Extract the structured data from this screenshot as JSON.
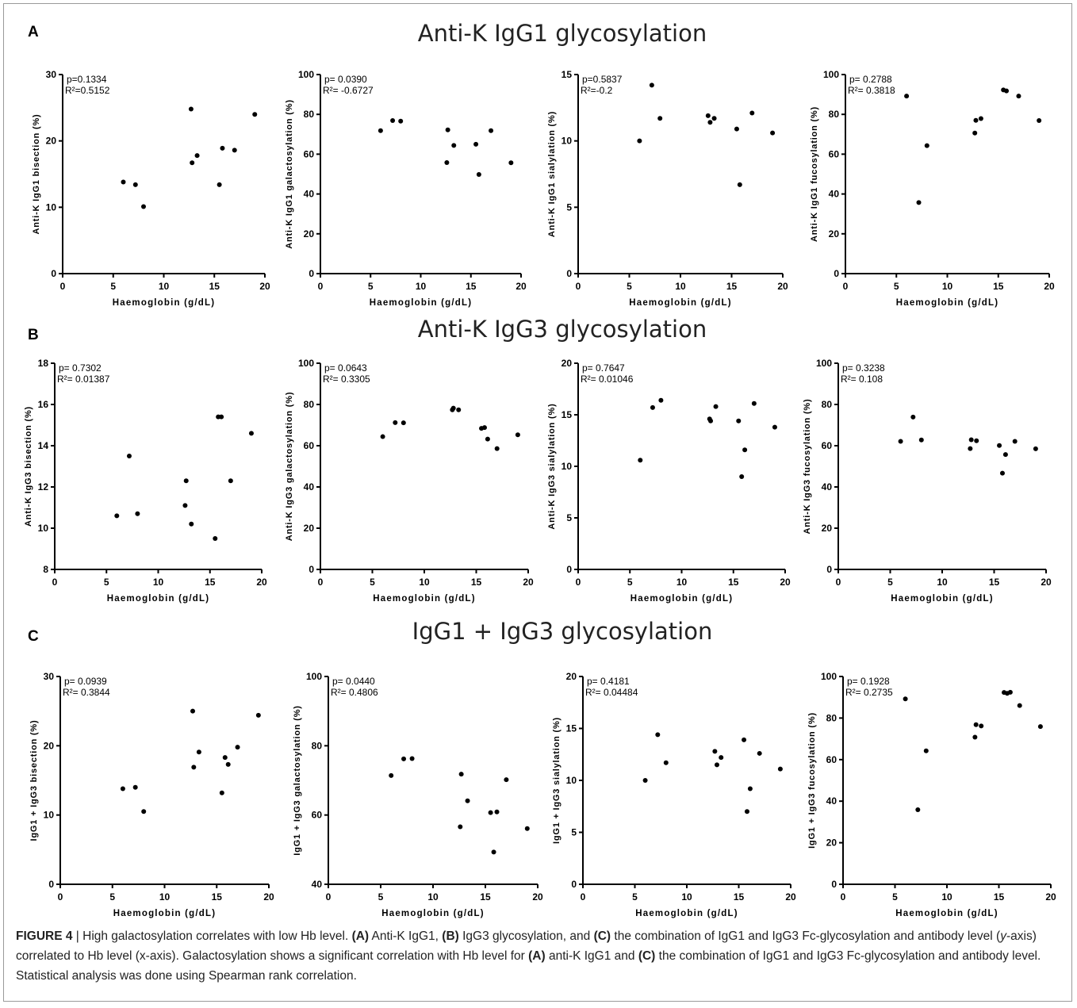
{
  "rows": [
    {
      "letter": "A",
      "title": "Anti-K IgG1 glycosylation"
    },
    {
      "letter": "B",
      "title": "Anti-K IgG3 glycosylation"
    },
    {
      "letter": "C",
      "title": "IgG1 + IgG3 glycosylation"
    }
  ],
  "caption": {
    "figure_label": "FIGURE 4",
    "sep": " | ",
    "s1": "High galactosylation correlates with low Hb level. ",
    "a1": "(A)",
    "s2": " Anti-K IgG1, ",
    "b1": "(B)",
    "s3": " IgG3 glycosylation, and ",
    "c1": "(C)",
    "s4": " the combination of IgG1 and IgG3 Fc-glycosylation and antibody level (",
    "yaxis": "y",
    "s5": "-axis) correlated to Hb level (x-axis). Galactosylation shows a significant correlation with Hb level for ",
    "a2": "(A)",
    "s6": " anti-K IgG1 and ",
    "c2": "(C)",
    "s7": " the combination of IgG1 and IgG3 Fc-glycosylation and antibody level. Statistical analysis was done using Spearman rank correlation."
  },
  "chart_data": [
    {
      "type": "scatter",
      "row": 0,
      "col": 0,
      "xlabel": "Haemoglobin (g/dL)",
      "ylabel": "Anti-K IgG1 bisection (%)",
      "xlim": [
        0,
        20
      ],
      "xticks": [
        0,
        5,
        10,
        15,
        20
      ],
      "ylim": [
        0,
        30
      ],
      "yticks": [
        0,
        10,
        20,
        30
      ],
      "stats": {
        "p": "p=0.1334",
        "r2": "R²=0.5152"
      },
      "points": [
        [
          6,
          13.8
        ],
        [
          7.2,
          13.4
        ],
        [
          8,
          10.1
        ],
        [
          12.7,
          24.8
        ],
        [
          12.8,
          16.7
        ],
        [
          13.3,
          17.8
        ],
        [
          15.5,
          13.4
        ],
        [
          15.8,
          18.9
        ],
        [
          17,
          18.6
        ],
        [
          19,
          24
        ]
      ]
    },
    {
      "type": "scatter",
      "row": 0,
      "col": 1,
      "xlabel": "Haemoglobin (g/dL)",
      "ylabel": "Anti-K IgG1 galactosylation (%)",
      "xlim": [
        0,
        20
      ],
      "xticks": [
        0,
        5,
        10,
        15,
        20
      ],
      "ylim": [
        0,
        100
      ],
      "yticks": [
        0,
        20,
        40,
        60,
        80,
        100
      ],
      "stats": {
        "p": "p=  0.0390",
        "r2": "R²= -0.6727"
      },
      "points": [
        [
          6,
          71.8
        ],
        [
          7.2,
          76.9
        ],
        [
          8,
          76.6
        ],
        [
          12.7,
          72.2
        ],
        [
          12.6,
          55.8
        ],
        [
          13.3,
          64.4
        ],
        [
          15.5,
          65
        ],
        [
          15.8,
          49.8
        ],
        [
          17,
          71.8
        ],
        [
          19,
          55.7
        ]
      ]
    },
    {
      "type": "scatter",
      "row": 0,
      "col": 2,
      "xlabel": "Haemoglobin (g/dL)",
      "ylabel": "Anti-K IgG1 sialylation (%)",
      "xlim": [
        0,
        20
      ],
      "xticks": [
        0,
        5,
        10,
        15,
        20
      ],
      "ylim": [
        0,
        15
      ],
      "yticks": [
        0,
        5,
        10,
        15
      ],
      "stats": {
        "p": "p=0.5837",
        "r2": "R²=-0.2"
      },
      "points": [
        [
          6,
          10
        ],
        [
          7.2,
          14.2
        ],
        [
          8,
          11.7
        ],
        [
          12.7,
          11.9
        ],
        [
          12.9,
          11.4
        ],
        [
          13.3,
          11.7
        ],
        [
          15.5,
          10.9
        ],
        [
          15.8,
          6.7
        ],
        [
          17,
          12.1
        ],
        [
          19,
          10.6
        ]
      ]
    },
    {
      "type": "scatter",
      "row": 0,
      "col": 3,
      "xlabel": "Haemoglobin (g/dL)",
      "ylabel": "Anti-K IgG1 fucosylation (%)",
      "xlim": [
        0,
        20
      ],
      "xticks": [
        0,
        5,
        10,
        15,
        20
      ],
      "ylim": [
        0,
        100
      ],
      "yticks": [
        0,
        20,
        40,
        60,
        80,
        100
      ],
      "stats": {
        "p": "p= 0.2788",
        "r2": "R²= 0.3818"
      },
      "points": [
        [
          6,
          89.2
        ],
        [
          7.2,
          35.7
        ],
        [
          8,
          64.3
        ],
        [
          12.7,
          70.6
        ],
        [
          12.8,
          77
        ],
        [
          13.3,
          77.9
        ],
        [
          15.5,
          92.3
        ],
        [
          15.8,
          91.8
        ],
        [
          17,
          89.2
        ],
        [
          19,
          76.9
        ]
      ]
    },
    {
      "type": "scatter",
      "row": 1,
      "col": 0,
      "xlabel": "Haemoglobin (g/dL)",
      "ylabel": "Anti-K IgG3 bisection (%)",
      "xlim": [
        0,
        20
      ],
      "xticks": [
        0,
        5,
        10,
        15,
        20
      ],
      "ylim": [
        8,
        18
      ],
      "yticks": [
        8,
        10,
        12,
        14,
        16,
        18
      ],
      "stats": {
        "p": "p= 0.7302",
        "r2": "R²= 0.01387"
      },
      "points": [
        [
          6,
          10.6
        ],
        [
          7.2,
          13.5
        ],
        [
          8,
          10.7
        ],
        [
          12.6,
          11.1
        ],
        [
          12.7,
          12.3
        ],
        [
          13.2,
          10.2
        ],
        [
          15.5,
          9.5
        ],
        [
          15.8,
          15.4
        ],
        [
          16.1,
          15.4
        ],
        [
          17,
          12.3
        ],
        [
          19,
          14.6
        ]
      ]
    },
    {
      "type": "scatter",
      "row": 1,
      "col": 1,
      "xlabel": "Haemoglobin (g/dL)",
      "ylabel": "Anti-K IgG3 galactosylation (%)",
      "xlim": [
        0,
        20
      ],
      "xticks": [
        0,
        5,
        10,
        15,
        20
      ],
      "ylim": [
        0,
        100
      ],
      "yticks": [
        0,
        20,
        40,
        60,
        80,
        100
      ],
      "stats": {
        "p": "p= 0.0643",
        "r2": "R²= 0.3305"
      },
      "points": [
        [
          6,
          64.4
        ],
        [
          7.2,
          71.2
        ],
        [
          8,
          71.1
        ],
        [
          12.7,
          77.4
        ],
        [
          12.8,
          78.2
        ],
        [
          13.3,
          77.4
        ],
        [
          15.5,
          68.4
        ],
        [
          15.8,
          68.8
        ],
        [
          16.1,
          63.2
        ],
        [
          17,
          58.6
        ],
        [
          19,
          65.3
        ]
      ]
    },
    {
      "type": "scatter",
      "row": 1,
      "col": 2,
      "xlabel": "Haemoglobin (g/dL)",
      "ylabel": "Anti-K IgG3 sialylation (%)",
      "xlim": [
        0,
        20
      ],
      "xticks": [
        0,
        5,
        10,
        15,
        20
      ],
      "ylim": [
        0,
        20
      ],
      "yticks": [
        0,
        5,
        10,
        15,
        20
      ],
      "stats": {
        "p": "p= 0.7647",
        "r2": "R²= 0.01046"
      },
      "points": [
        [
          6,
          10.6
        ],
        [
          7.2,
          15.7
        ],
        [
          8,
          16.4
        ],
        [
          12.7,
          14.6
        ],
        [
          12.8,
          14.4
        ],
        [
          13.3,
          15.8
        ],
        [
          15.5,
          14.4
        ],
        [
          15.8,
          9
        ],
        [
          16.1,
          11.6
        ],
        [
          17,
          16.1
        ],
        [
          19,
          13.8
        ]
      ]
    },
    {
      "type": "scatter",
      "row": 1,
      "col": 3,
      "xlabel": "Haemoglobin (g/dL)",
      "ylabel": "Anti-K IgG3 fucosylation (%)",
      "xlim": [
        0,
        20
      ],
      "xticks": [
        0,
        5,
        10,
        15,
        20
      ],
      "ylim": [
        0,
        100
      ],
      "yticks": [
        0,
        20,
        40,
        60,
        80,
        100
      ],
      "stats": {
        "p": "p= 0.3238",
        "r2": "R²= 0.108"
      },
      "points": [
        [
          6,
          62.1
        ],
        [
          7.2,
          73.9
        ],
        [
          8,
          62.8
        ],
        [
          12.7,
          58.6
        ],
        [
          12.8,
          62.9
        ],
        [
          13.3,
          62.4
        ],
        [
          15.5,
          60.1
        ],
        [
          15.8,
          46.7
        ],
        [
          16.1,
          55.7
        ],
        [
          17,
          62.1
        ],
        [
          19,
          58.5
        ]
      ]
    },
    {
      "type": "scatter",
      "row": 2,
      "col": 0,
      "xlabel": "Haemoglobin (g/dL)",
      "ylabel": "IgG1 + IgG3 bisection (%)",
      "xlim": [
        0,
        20
      ],
      "xticks": [
        0,
        5,
        10,
        15,
        20
      ],
      "ylim": [
        0,
        30
      ],
      "yticks": [
        0,
        10,
        20,
        30
      ],
      "stats": {
        "p": "p= 0.0939",
        "r2": "R²= 0.3844"
      },
      "points": [
        [
          6,
          13.8
        ],
        [
          7.2,
          14
        ],
        [
          8,
          10.5
        ],
        [
          12.7,
          25
        ],
        [
          12.8,
          16.9
        ],
        [
          13.3,
          19.1
        ],
        [
          15.5,
          13.2
        ],
        [
          15.8,
          18.3
        ],
        [
          16.1,
          17.3
        ],
        [
          17,
          19.8
        ],
        [
          19,
          24.4
        ]
      ]
    },
    {
      "type": "scatter",
      "row": 2,
      "col": 1,
      "xlabel": "Haemoglobin (g/dL)",
      "ylabel": "IgG1 + IgG3 galactosylation (%)",
      "xlim": [
        0,
        20
      ],
      "xticks": [
        0,
        5,
        10,
        15,
        20
      ],
      "ylim": [
        40,
        100
      ],
      "yticks": [
        40,
        60,
        80,
        100
      ],
      "stats": {
        "p": "p= 0.0440",
        "r2": "R²= 0.4806"
      },
      "points": [
        [
          6,
          71.4
        ],
        [
          7.2,
          76.2
        ],
        [
          8,
          76.3
        ],
        [
          12.7,
          71.8
        ],
        [
          12.6,
          56.6
        ],
        [
          13.3,
          64.1
        ],
        [
          15.5,
          60.7
        ],
        [
          15.8,
          49.3
        ],
        [
          16.1,
          60.9
        ],
        [
          17,
          70.2
        ],
        [
          19,
          56.1
        ]
      ]
    },
    {
      "type": "scatter",
      "row": 2,
      "col": 2,
      "xlabel": "Haemoglobin (g/dL)",
      "ylabel": "IgG1 + IgG3 sialylation (%)",
      "xlim": [
        0,
        20
      ],
      "xticks": [
        0,
        5,
        10,
        15,
        20
      ],
      "ylim": [
        0,
        20
      ],
      "yticks": [
        0,
        5,
        10,
        15,
        20
      ],
      "stats": {
        "p": "p= 0.4181",
        "r2": "R²= 0.04484"
      },
      "points": [
        [
          6,
          10
        ],
        [
          7.2,
          14.4
        ],
        [
          8,
          11.7
        ],
        [
          12.7,
          12.8
        ],
        [
          12.9,
          11.5
        ],
        [
          13.3,
          12.2
        ],
        [
          15.5,
          13.9
        ],
        [
          15.8,
          7
        ],
        [
          16.1,
          9.2
        ],
        [
          17,
          12.6
        ],
        [
          19,
          11.1
        ]
      ]
    },
    {
      "type": "scatter",
      "row": 2,
      "col": 3,
      "xlabel": "Haemoglobin (g/dL)",
      "ylabel": "IgG1 + IgG3 fucosylation (%)",
      "xlim": [
        0,
        20
      ],
      "xticks": [
        0,
        5,
        10,
        15,
        20
      ],
      "ylim": [
        0,
        100
      ],
      "yticks": [
        0,
        20,
        40,
        60,
        80,
        100
      ],
      "stats": {
        "p": "p= 0.1928",
        "r2": "R²= 0.2735"
      },
      "points": [
        [
          6,
          89.2
        ],
        [
          7.2,
          35.9
        ],
        [
          8,
          64.2
        ],
        [
          12.7,
          70.8
        ],
        [
          12.8,
          76.8
        ],
        [
          13.3,
          76.2
        ],
        [
          15.5,
          92.3
        ],
        [
          15.8,
          91.9
        ],
        [
          16.1,
          92.4
        ],
        [
          17,
          86
        ],
        [
          19,
          75.9
        ]
      ]
    }
  ]
}
